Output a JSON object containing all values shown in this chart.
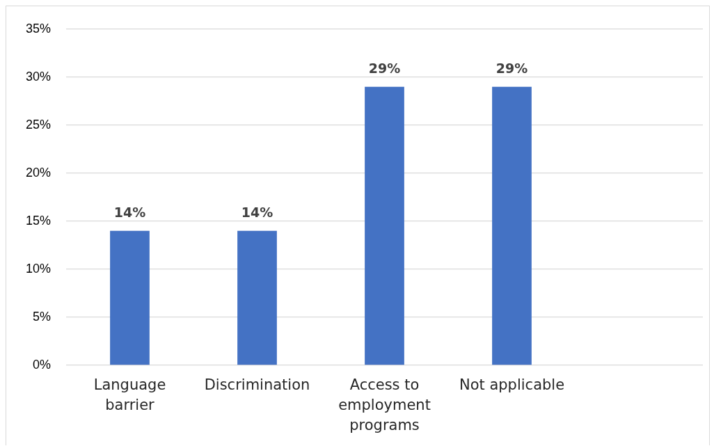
{
  "chart_data": {
    "type": "bar",
    "categories": [
      "Language barrier",
      "Discrimination",
      "Access to employment programs",
      "Not applicable",
      null
    ],
    "values": [
      14,
      14,
      29,
      29,
      null
    ],
    "color": "#4472c4",
    "ylim": [
      0,
      35
    ],
    "yticks": [
      {
        "value": 0,
        "label": "0%"
      },
      {
        "value": 5,
        "label": "5%"
      },
      {
        "value": 10,
        "label": "10%"
      },
      {
        "value": 15,
        "label": "15%"
      },
      {
        "value": 20,
        "label": "20%"
      },
      {
        "value": 25,
        "label": "25%"
      },
      {
        "value": 30,
        "label": "30%"
      },
      {
        "value": 35,
        "label": "35%"
      }
    ],
    "grid": "y",
    "value_labels": [
      "14%",
      "14%",
      "29%",
      "29%",
      null
    ]
  }
}
